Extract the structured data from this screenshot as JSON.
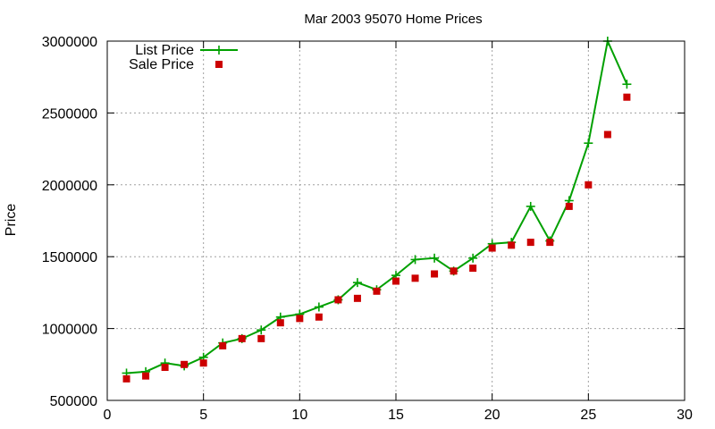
{
  "chart_data": {
    "type": "line",
    "title": "Mar 2003 95070 Home Prices",
    "xlabel": "",
    "ylabel": "Price",
    "xlim": [
      0,
      30
    ],
    "ylim": [
      500000,
      3000000
    ],
    "xticks": [
      0,
      5,
      10,
      15,
      20,
      25,
      30
    ],
    "yticks": [
      500000,
      1000000,
      1500000,
      2000000,
      2500000,
      3000000
    ],
    "grid": true,
    "legend_position": "top-left",
    "x": [
      1,
      2,
      3,
      4,
      5,
      6,
      7,
      8,
      9,
      10,
      11,
      12,
      13,
      14,
      15,
      16,
      17,
      18,
      19,
      20,
      21,
      22,
      23,
      24,
      25,
      26,
      27
    ],
    "series": [
      {
        "name": "List Price",
        "style": "line-plus",
        "color": "#00a000",
        "values": [
          690000,
          700000,
          760000,
          740000,
          800000,
          900000,
          930000,
          990000,
          1080000,
          1100000,
          1150000,
          1200000,
          1320000,
          1270000,
          1370000,
          1480000,
          1490000,
          1400000,
          1490000,
          1590000,
          1600000,
          1850000,
          1610000,
          1890000,
          2290000,
          3000000,
          2700000
        ]
      },
      {
        "name": "Sale Price",
        "style": "square",
        "color": "#cc0000",
        "values": [
          650000,
          670000,
          730000,
          750000,
          760000,
          880000,
          930000,
          930000,
          1040000,
          1070000,
          1080000,
          1200000,
          1210000,
          1260000,
          1330000,
          1350000,
          1380000,
          1400000,
          1420000,
          1560000,
          1580000,
          1600000,
          1600000,
          1850000,
          2000000,
          2350000,
          2610000
        ]
      }
    ]
  }
}
